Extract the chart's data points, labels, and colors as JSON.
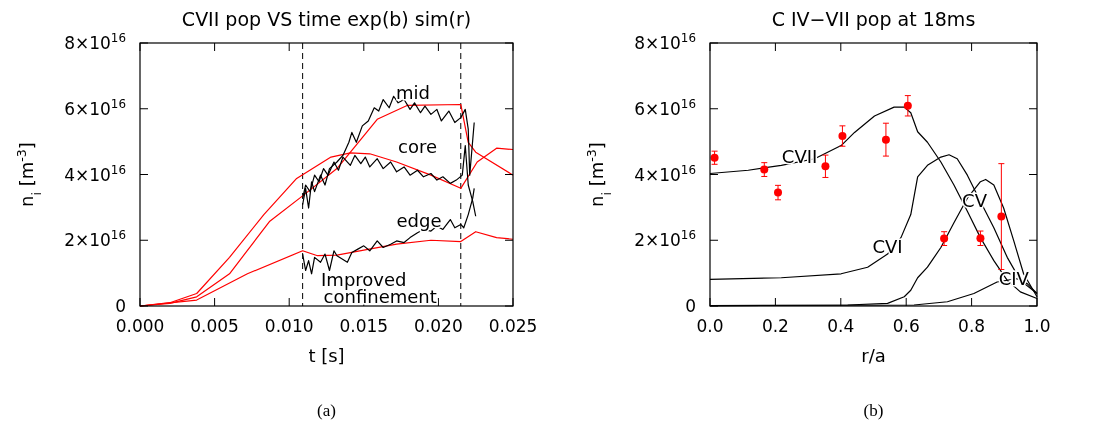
{
  "chart_data": [
    {
      "type": "line",
      "title": "CVII pop VS time exp(b) sim(r)",
      "xlabel": "t [s]",
      "ylabel": "n$_{i}$ [m$^{-3}$]",
      "xlim": [
        0,
        0.025
      ],
      "ylim": [
        0,
        8e+16
      ],
      "xticks": [
        {
          "value": 0,
          "label": "0.000"
        },
        {
          "value": 0.005,
          "label": "0.005"
        },
        {
          "value": 0.01,
          "label": "0.010"
        },
        {
          "value": 0.015,
          "label": "0.015"
        },
        {
          "value": 0.02,
          "label": "0.020"
        },
        {
          "value": 0.025,
          "label": "0.025"
        }
      ],
      "yticks": [
        {
          "value": 0,
          "label": "0"
        },
        {
          "value": 2e+16,
          "label": "2×10$^{16}$"
        },
        {
          "value": 4e+16,
          "label": "4×10$^{16}$"
        },
        {
          "value": 6e+16,
          "label": "6×10$^{16}$"
        },
        {
          "value": 8e+16,
          "label": "8×10$^{16}$"
        }
      ],
      "ref_lines": [
        {
          "axis": "x",
          "value": 0.0109,
          "line_style": "dashed",
          "color": "#000000"
        },
        {
          "axis": "x",
          "value": 0.0215,
          "line_style": "dashed",
          "color": "#000000"
        }
      ],
      "series": [
        {
          "color": "#ff0000",
          "x": [
            0,
            0.002,
            0.0038,
            0.006,
            0.0087,
            0.0109,
            0.0132,
            0.0159,
            0.0179,
            0.0215,
            0.022,
            0.0225,
            0.025
          ],
          "values": [
            0,
            800000000000000.0,
            2800000000000000.0,
            9800000000000000.0,
            2.58e+16,
            3.35e+16,
            4.18e+16,
            5.68e+16,
            6.1e+16,
            6.13e+16,
            4.98e+16,
            4.68e+16,
            3.98e+16
          ]
        },
        {
          "color": "#ff0000",
          "x": [
            0,
            0.002,
            0.0038,
            0.006,
            0.0083,
            0.0105,
            0.0128,
            0.0141,
            0.0154,
            0.0172,
            0.0195,
            0.0215,
            0.0226,
            0.0239,
            0.025
          ],
          "values": [
            0,
            1000000000000000.0,
            3800000000000000.0,
            1.48e+16,
            2.78e+16,
            3.88e+16,
            4.53e+16,
            4.66e+16,
            4.63e+16,
            4.38e+16,
            3.98e+16,
            3.58e+16,
            4.38e+16,
            4.8e+16,
            4.76e+16
          ]
        },
        {
          "color": "#ff0000",
          "x": [
            0,
            0.0038,
            0.0072,
            0.0109,
            0.0119,
            0.0132,
            0.015,
            0.0172,
            0.0195,
            0.0215,
            0.0225,
            0.0239,
            0.025
          ],
          "values": [
            0,
            1800000000000000.0,
            9800000000000000.0,
            1.68e+16,
            1.53e+16,
            1.55e+16,
            1.7e+16,
            1.88e+16,
            2e+16,
            1.96e+16,
            2.26e+16,
            2.08e+16,
            2.03e+16
          ]
        },
        {
          "color": "#000000",
          "x": [
            0.0109,
            0.0111,
            0.0113,
            0.0115,
            0.0117,
            0.0121,
            0.0124,
            0.0127,
            0.0132,
            0.0136,
            0.014,
            0.0142,
            0.0145,
            0.0149,
            0.0153,
            0.0157,
            0.016,
            0.0163,
            0.0167,
            0.017,
            0.0173,
            0.0177,
            0.0181,
            0.0184,
            0.0188,
            0.0191,
            0.0195,
            0.0199,
            0.0202,
            0.0207,
            0.0211,
            0.0215,
            0.0218,
            0.022,
            0.0221,
            0.0224
          ],
          "values": [
            3.08e+16,
            3.58e+16,
            2.98e+16,
            3.78e+16,
            3.48e+16,
            3.98e+16,
            3.68e+16,
            4.18e+16,
            4.38e+16,
            4.58e+16,
            4.98e+16,
            5.28e+16,
            4.98e+16,
            5.48e+16,
            5.63e+16,
            6.03e+16,
            5.93e+16,
            6.28e+16,
            6.03e+16,
            6.38e+16,
            6.18e+16,
            6.28e+16,
            5.98e+16,
            6.18e+16,
            5.88e+16,
            6.08e+16,
            5.83e+16,
            5.98e+16,
            5.63e+16,
            5.93e+16,
            5.58e+16,
            5.73e+16,
            5.98e+16,
            5.38e+16,
            3.98e+16,
            5.58e+16
          ]
        },
        {
          "color": "#000000",
          "x": [
            0.0109,
            0.0111,
            0.0114,
            0.0117,
            0.012,
            0.0123,
            0.0126,
            0.013,
            0.0133,
            0.0136,
            0.0141,
            0.0144,
            0.0148,
            0.0151,
            0.0154,
            0.0159,
            0.0163,
            0.0168,
            0.0172,
            0.0177,
            0.0181,
            0.0186,
            0.019,
            0.0195,
            0.0199,
            0.0203,
            0.0208,
            0.0212,
            0.0216,
            0.0218,
            0.022,
            0.0223,
            0.0225
          ],
          "values": [
            3.28e+16,
            3.68e+16,
            3.48e+16,
            3.98e+16,
            3.78e+16,
            4.18e+16,
            3.98e+16,
            4.38e+16,
            4.13e+16,
            4.53e+16,
            4.28e+16,
            4.58e+16,
            4.33e+16,
            4.53e+16,
            4.23e+16,
            4.48e+16,
            4.18e+16,
            4.38e+16,
            4.08e+16,
            4.23e+16,
            3.98e+16,
            4.13e+16,
            3.93e+16,
            4.03e+16,
            3.83e+16,
            3.93e+16,
            3.73e+16,
            3.83e+16,
            3.98e+16,
            4.88e+16,
            3.68e+16,
            3.18e+16,
            2.73e+16
          ]
        },
        {
          "color": "#000000",
          "x": [
            0.0109,
            0.0111,
            0.0113,
            0.0115,
            0.0117,
            0.0121,
            0.0124,
            0.0127,
            0.013,
            0.0132,
            0.0139,
            0.0142,
            0.0146,
            0.015,
            0.0154,
            0.0159,
            0.0163,
            0.0168,
            0.0172,
            0.0177,
            0.0181,
            0.0186,
            0.019,
            0.0195,
            0.0199,
            0.0203,
            0.0208,
            0.0211,
            0.0215,
            0.0217,
            0.022,
            0.0223,
            0.0224
          ],
          "values": [
            1.58e+16,
            1.08e+16,
            1.38e+16,
            9800000000000000.0,
            1.48e+16,
            1.33e+16,
            1.58e+16,
            1.08e+16,
            1.68e+16,
            1.53e+16,
            1.33e+16,
            1.63e+16,
            1.73e+16,
            1.83e+16,
            1.68e+16,
            1.98e+16,
            1.78e+16,
            1.88e+16,
            1.98e+16,
            1.93e+16,
            2.08e+16,
            2.23e+16,
            2.33e+16,
            2.28e+16,
            2.43e+16,
            2.33e+16,
            2.63e+16,
            2.38e+16,
            2.48e+16,
            2.38e+16,
            2.78e+16,
            3.28e+16,
            3.58e+16
          ]
        }
      ],
      "annotations": [
        "mid",
        "core",
        "edge",
        "Improved",
        "confinement",
        "(a)"
      ]
    },
    {
      "type": "line",
      "title": "C IV−VII pop at 18ms",
      "xlabel": "r/a",
      "ylabel": "n$_{i}$ [m$^{-3}$]",
      "xlim": [
        0,
        1
      ],
      "ylim": [
        0,
        8e+16
      ],
      "xticks": [
        {
          "value": 0,
          "label": "0.0"
        },
        0.2,
        0.4,
        0.6,
        0.8,
        {
          "value": 1,
          "label": "1.0"
        }
      ],
      "yticks": [
        {
          "value": 0,
          "label": "0"
        },
        {
          "value": 2e+16,
          "label": "2×10$^{16}$"
        },
        {
          "value": 4e+16,
          "label": "4×10$^{16}$"
        },
        {
          "value": 6e+16,
          "label": "6×10$^{16}$"
        },
        {
          "value": 8e+16,
          "label": "8×10$^{16}$"
        }
      ],
      "series": [
        {
          "color": "#000000",
          "x": [
            0,
            0.117,
            0.218,
            0.32,
            0.401,
            0.442,
            0.503,
            0.563,
            0.594,
            0.614,
            0.635,
            0.665,
            0.706,
            0.746,
            0.787,
            0.827,
            0.868,
            0.909,
            0.949,
            1.0
          ],
          "values": [
            4.03e+16,
            4.13e+16,
            4.28e+16,
            4.48e+16,
            4.88e+16,
            5.28e+16,
            5.78e+16,
            6.05e+16,
            6.05e+16,
            5.88e+16,
            5.3e+16,
            4.98e+16,
            4.38e+16,
            3.68e+16,
            2.88e+16,
            2.08e+16,
            1.38e+16,
            7800000000000000.0,
            4300000000000000.0,
            2300000000000000.0
          ]
        },
        {
          "color": "#000000",
          "x": [
            0,
            0.218,
            0.401,
            0.482,
            0.543,
            0.584,
            0.614,
            0.635,
            0.665,
            0.706,
            0.731,
            0.756,
            0.787,
            0.827,
            0.868,
            0.909,
            0.949,
            1.0
          ],
          "values": [
            8100000000000000.0,
            8600000000000000.0,
            9800000000000000.0,
            1.18e+16,
            1.58e+16,
            2.08e+16,
            2.78e+16,
            3.93e+16,
            4.28e+16,
            4.53e+16,
            4.6e+16,
            4.48e+16,
            3.98e+16,
            3.18e+16,
            2.38e+16,
            1.48e+16,
            7800000000000000.0,
            3800000000000000.0
          ]
        },
        {
          "color": "#000000",
          "x": [
            0,
            0.421,
            0.543,
            0.594,
            0.614,
            0.635,
            0.665,
            0.706,
            0.746,
            0.787,
            0.827,
            0.843,
            0.868,
            0.898,
            0.929,
            0.959,
            1.0
          ],
          "values": [
            100000000000000.0,
            300000000000000.0,
            800000000000000.0,
            2800000000000000.0,
            4800000000000000.0,
            8600000000000000.0,
            1.18e+16,
            1.78e+16,
            2.53e+16,
            3.28e+16,
            3.78e+16,
            3.85e+16,
            3.68e+16,
            2.98e+16,
            1.98e+16,
            9800000000000000.0,
            2800000000000000.0
          ]
        },
        {
          "color": "#000000",
          "x": [
            0,
            0.624,
            0.726,
            0.807,
            0.878,
            0.939,
            0.97,
            1.0
          ],
          "values": [
            100000000000000.0,
            300000000000000.0,
            1300000000000000.0,
            3800000000000000.0,
            7300000000000000.0,
            8300000000000000.0,
            6800000000000000.0,
            3800000000000000.0
          ]
        },
        {
          "type": "scatter",
          "marker": "circle",
          "color": "#ff0000",
          "x": [
            0.014,
            0.166,
            0.208,
            0.353,
            0.405,
            0.538,
            0.605,
            0.716,
            0.827,
            0.891
          ],
          "values": [
            4.51e+16,
            4.15e+16,
            3.45e+16,
            4.25e+16,
            5.17e+16,
            5.06e+16,
            6.09e+16,
            2.05e+16,
            2.06e+16,
            2.72e+16
          ],
          "errors": [
            2000000000000000.0,
            2100000000000000.0,
            2200000000000000.0,
            3400000000000000.0,
            3100000000000000.0,
            5000000000000000.0,
            3100000000000000.0,
            2100000000000000.0,
            2200000000000000.0,
            [
              1.11e+16,
              4.33e+16
            ]
          ]
        }
      ],
      "annotations": [
        {
          "text": "CVII",
          "x": 0.274,
          "y": 4.53e+16
        },
        {
          "text": "CVI",
          "x": 0.543,
          "y": 1.78e+16
        },
        {
          "text": "CV",
          "x": 0.809,
          "y": 3.18e+16
        },
        {
          "text": "CIV",
          "x": 0.929,
          "y": 8300000000000000.0
        },
        "(b)"
      ]
    }
  ]
}
